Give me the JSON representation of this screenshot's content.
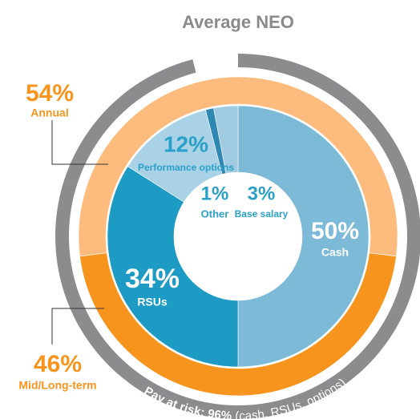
{
  "chart_data": {
    "type": "donut",
    "title": "Average NEO",
    "inner": {
      "categories": [
        "Cash",
        "RSUs",
        "Performance options",
        "Other",
        "Base salary"
      ],
      "values": [
        50,
        34,
        12,
        1,
        3
      ],
      "value_labels": [
        "50%",
        "34%",
        "12%",
        "1%",
        "3%"
      ],
      "colors": [
        "#7cbad8",
        "#1d9bc4",
        "#aad2e7",
        "#2f88b2",
        "#a0cbe0"
      ]
    },
    "middle": {
      "categories": [
        "Annual",
        "Mid/Long-term"
      ],
      "values": [
        54,
        46
      ],
      "value_labels": [
        "54%",
        "46%"
      ],
      "colors": [
        "#fdbb7d",
        "#f7941d"
      ]
    },
    "outer": {
      "label": "Pay at risk:",
      "values": [
        96
      ],
      "value_labels": [
        "96%"
      ],
      "note": "(cash, RSUs, options)",
      "color": "#8c8c8e"
    }
  }
}
